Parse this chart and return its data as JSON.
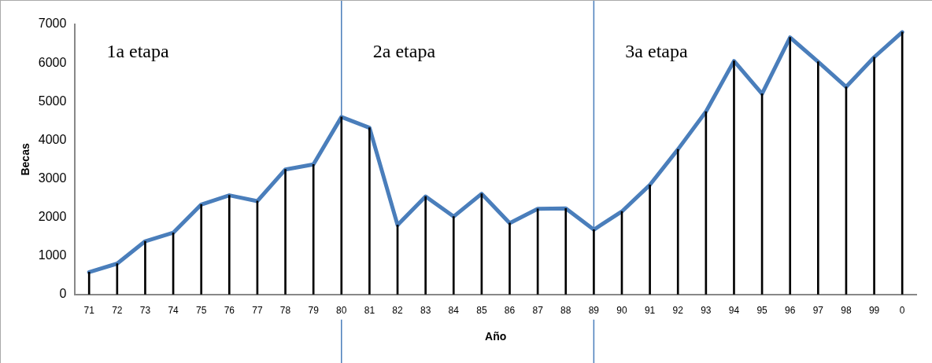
{
  "chart_data": {
    "type": "line",
    "xlabel": "Año",
    "ylabel": "Becas",
    "categories": [
      "71",
      "72",
      "73",
      "74",
      "75",
      "76",
      "77",
      "78",
      "79",
      "80",
      "81",
      "82",
      "83",
      "84",
      "85",
      "86",
      "87",
      "88",
      "89",
      "90",
      "91",
      "92",
      "93",
      "94",
      "95",
      "96",
      "97",
      "98",
      "99",
      "0"
    ],
    "series": [
      {
        "color": "#4a7ebb",
        "values": [
          580,
          800,
          1380,
          1600,
          2330,
          2570,
          2420,
          3240,
          3370,
          4600,
          4320,
          1800,
          2540,
          2020,
          2610,
          1850,
          2220,
          2230,
          1680,
          2150,
          2840,
          3760,
          4740,
          6050,
          5200,
          6660,
          6030,
          5380,
          6150,
          6800
        ]
      },
      {
        "type": "bar",
        "color": "#000000",
        "values": [
          580,
          800,
          1380,
          1600,
          2330,
          2570,
          2420,
          3240,
          3370,
          4600,
          4320,
          1800,
          2540,
          2020,
          2610,
          1850,
          2220,
          2230,
          1680,
          2150,
          2840,
          3760,
          4740,
          6050,
          5200,
          6660,
          6030,
          5380,
          6150,
          6800
        ]
      }
    ],
    "ylim": [
      0,
      7000
    ],
    "yticks": [
      0,
      1000,
      2000,
      3000,
      4000,
      5000,
      6000,
      7000
    ],
    "grid": false,
    "legend": false,
    "marker": "none",
    "line_style": "solid",
    "ref_lines": [
      {
        "axis": "x",
        "value": "80",
        "color": "#4a7ebb"
      },
      {
        "axis": "x",
        "value": "89",
        "color": "#4a7ebb"
      }
    ],
    "annotations": [
      "1a etapa",
      "2a etapa",
      "3a etapa"
    ]
  }
}
